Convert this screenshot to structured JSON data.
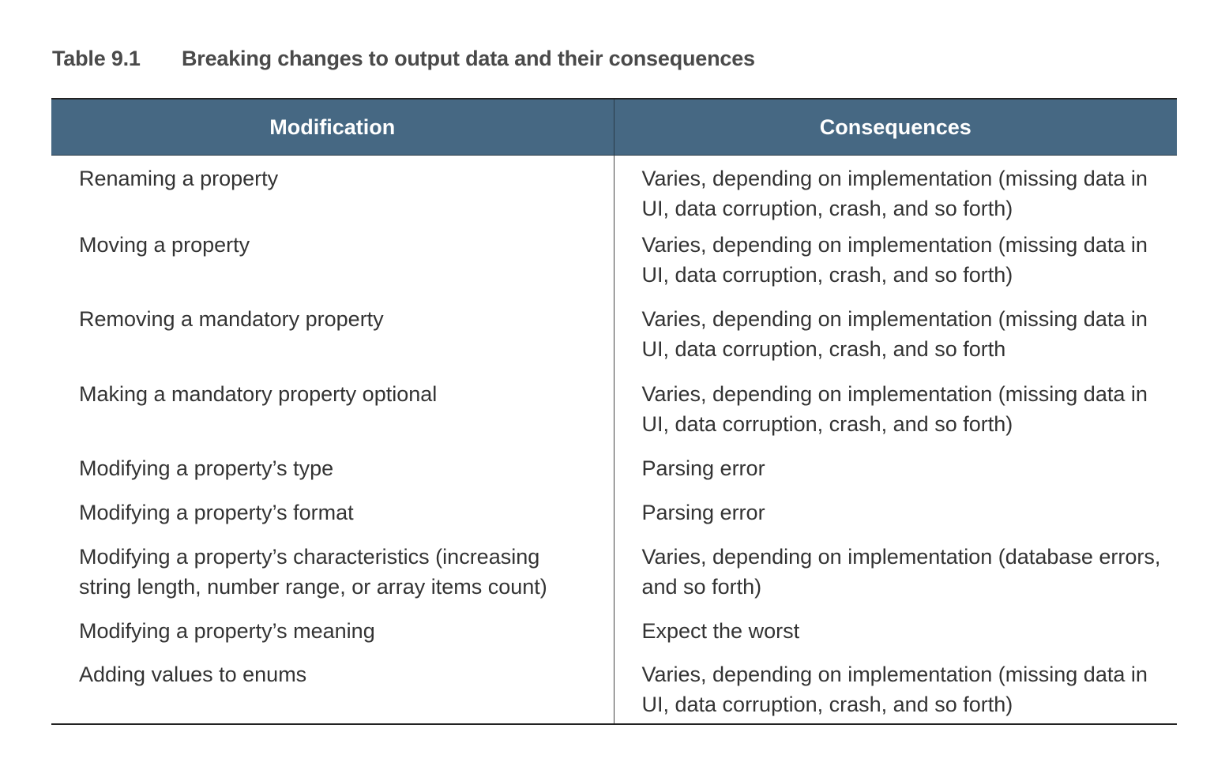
{
  "caption": {
    "number": "Table 9.1",
    "title": "Breaking changes to output data and their consequences"
  },
  "table": {
    "headers": [
      "Modification",
      "Consequences"
    ],
    "rows": [
      [
        "Renaming a property",
        "Varies, depending on implementation (missing data in UI, data corruption, crash, and so forth)"
      ],
      [
        "Moving a property",
        "Varies, depending on implementation (missing data in UI, data corruption, crash, and so forth)"
      ],
      [
        "Removing a mandatory property",
        "Varies, depending on implementation (missing data in UI, data corruption, crash, and so forth"
      ],
      [
        "Making a mandatory property optional",
        "Varies, depending on implementation (missing data in UI, data corruption, crash, and so forth)"
      ],
      [
        "Modifying a property’s type",
        "Parsing error"
      ],
      [
        "Modifying a property’s format",
        "Parsing error"
      ],
      [
        "Modifying a property’s characteristics (increasing string length, number range, or array items count)",
        "Varies, depending on implementation (database errors, and so forth)"
      ],
      [
        "Modifying a property’s meaning",
        "Expect the worst"
      ],
      [
        "Adding values to enums",
        "Varies, depending on implementation (missing data in UI, data corruption, crash, and so forth)"
      ]
    ]
  }
}
